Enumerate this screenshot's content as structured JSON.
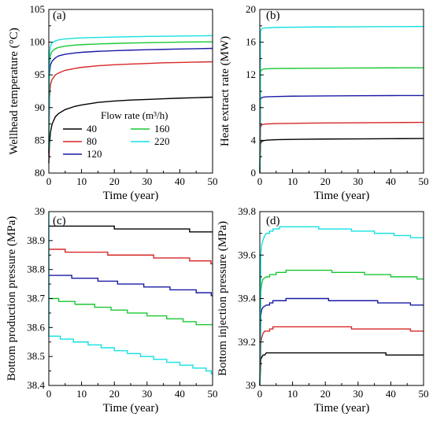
{
  "legend": {
    "title": "Flow rate (m³/h)",
    "items": [
      {
        "label": "40",
        "color": "#000000"
      },
      {
        "label": "80",
        "color": "#d62728"
      },
      {
        "label": "120",
        "color": "#1a1aa6"
      },
      {
        "label": "160",
        "color": "#19c832"
      },
      {
        "label": "220",
        "color": "#16e0e0"
      }
    ]
  },
  "chart_data": [
    {
      "id": "a",
      "panel_label": "(a)",
      "type": "line",
      "xlabel": "Time (year)",
      "ylabel": "Wellhead temperature (°C)",
      "xlim": [
        0,
        50
      ],
      "ylim": [
        80,
        105
      ],
      "xticks": [
        0,
        10,
        20,
        30,
        40,
        50
      ],
      "yticks": [
        80,
        85,
        90,
        95,
        100,
        105
      ],
      "series": [
        {
          "name": "40",
          "color": "#000000",
          "x": [
            0,
            0.2,
            0.5,
            1,
            2,
            3,
            5,
            8,
            10,
            15,
            20,
            25,
            30,
            35,
            40,
            45,
            50
          ],
          "y": [
            81.5,
            84.5,
            86.2,
            87.5,
            88.6,
            89.1,
            89.7,
            90.2,
            90.4,
            90.8,
            91.0,
            91.15,
            91.25,
            91.35,
            91.45,
            91.52,
            91.6
          ]
        },
        {
          "name": "80",
          "color": "#d62728",
          "x": [
            0,
            0.2,
            0.5,
            1,
            2,
            3,
            5,
            8,
            10,
            15,
            20,
            25,
            30,
            35,
            40,
            45,
            50
          ],
          "y": [
            82.5,
            91.5,
            93.5,
            94.3,
            95.0,
            95.3,
            95.7,
            96.0,
            96.15,
            96.4,
            96.55,
            96.65,
            96.75,
            96.85,
            96.9,
            96.95,
            97.0
          ]
        },
        {
          "name": "120",
          "color": "#1a1aa6",
          "x": [
            0,
            0.2,
            0.5,
            1,
            2,
            3,
            5,
            8,
            10,
            15,
            20,
            25,
            30,
            35,
            40,
            45,
            50
          ],
          "y": [
            83.0,
            95.0,
            96.5,
            97.1,
            97.6,
            97.9,
            98.15,
            98.35,
            98.45,
            98.6,
            98.7,
            98.78,
            98.85,
            98.9,
            98.95,
            99.0,
            99.05
          ]
        },
        {
          "name": "160",
          "color": "#19c832",
          "x": [
            0,
            0.2,
            0.5,
            1,
            2,
            3,
            5,
            8,
            10,
            15,
            20,
            25,
            30,
            35,
            40,
            45,
            50
          ],
          "y": [
            83.5,
            96.5,
            98.0,
            98.6,
            99.0,
            99.2,
            99.4,
            99.55,
            99.62,
            99.72,
            99.8,
            99.87,
            99.92,
            99.96,
            100.0,
            100.03,
            100.05
          ]
        },
        {
          "name": "220",
          "color": "#16e0e0",
          "x": [
            0,
            0.2,
            0.5,
            1,
            2,
            3,
            5,
            8,
            10,
            15,
            20,
            25,
            30,
            35,
            40,
            45,
            50
          ],
          "y": [
            84.0,
            98.0,
            99.4,
            99.9,
            100.2,
            100.35,
            100.5,
            100.6,
            100.65,
            100.72,
            100.78,
            100.83,
            100.87,
            100.9,
            100.93,
            100.96,
            101.0
          ]
        }
      ]
    },
    {
      "id": "b",
      "panel_label": "(b)",
      "type": "line",
      "xlabel": "Time (year)",
      "ylabel": "Heat extract rate (MW)",
      "xlim": [
        0,
        50
      ],
      "ylim": [
        0,
        20
      ],
      "xticks": [
        0,
        10,
        20,
        30,
        40,
        50
      ],
      "yticks": [
        0,
        4,
        8,
        12,
        16,
        20
      ],
      "series": [
        {
          "name": "40",
          "color": "#000000",
          "x": [
            0,
            0.2,
            0.5,
            1,
            2,
            5,
            10,
            20,
            30,
            40,
            50
          ],
          "y": [
            0,
            3.6,
            3.85,
            3.95,
            4.02,
            4.08,
            4.12,
            4.16,
            4.18,
            4.2,
            4.22
          ]
        },
        {
          "name": "80",
          "color": "#d62728",
          "x": [
            0,
            0.2,
            0.5,
            1,
            2,
            5,
            10,
            20,
            30,
            40,
            50
          ],
          "y": [
            0,
            5.6,
            5.85,
            5.95,
            6.0,
            6.05,
            6.08,
            6.12,
            6.15,
            6.17,
            6.2
          ]
        },
        {
          "name": "120",
          "color": "#1a1aa6",
          "x": [
            0,
            0.2,
            0.5,
            1,
            2,
            5,
            10,
            20,
            30,
            40,
            50
          ],
          "y": [
            0,
            9.0,
            9.2,
            9.27,
            9.32,
            9.36,
            9.4,
            9.43,
            9.45,
            9.47,
            9.48
          ]
        },
        {
          "name": "160",
          "color": "#19c832",
          "x": [
            0,
            0.2,
            0.5,
            1,
            2,
            5,
            10,
            20,
            30,
            40,
            50
          ],
          "y": [
            0,
            12.3,
            12.6,
            12.7,
            12.75,
            12.78,
            12.8,
            12.82,
            12.84,
            12.86,
            12.87
          ]
        },
        {
          "name": "220",
          "color": "#16e0e0",
          "x": [
            0,
            0.2,
            0.5,
            1,
            2,
            5,
            10,
            20,
            30,
            40,
            50
          ],
          "y": [
            0,
            17.3,
            17.6,
            17.7,
            17.75,
            17.8,
            17.83,
            17.86,
            17.88,
            17.9,
            17.92
          ]
        }
      ]
    },
    {
      "id": "c",
      "panel_label": "(c)",
      "type": "line",
      "xlabel": "Time (year)",
      "ylabel": "Bottom production pressure (MPa)",
      "xlim": [
        0,
        50
      ],
      "ylim": [
        38.4,
        39.0
      ],
      "xticks": [
        0,
        10,
        20,
        30,
        40,
        50
      ],
      "yticks": [
        38.4,
        38.5,
        38.6,
        38.7,
        38.8,
        38.9,
        39.0
      ],
      "series": [
        {
          "name": "40",
          "color": "#000000",
          "steps": [
            [
              0,
              38.95
            ],
            [
              20,
              38.94
            ],
            [
              43,
              38.93
            ]
          ],
          "x_end": 50,
          "start_spike": 38.95
        },
        {
          "name": "80",
          "color": "#d62728",
          "steps": [
            [
              0,
              38.87
            ],
            [
              5,
              38.86
            ],
            [
              18,
              38.85
            ],
            [
              32,
              38.84
            ],
            [
              43,
              38.83
            ],
            [
              49.5,
              38.82
            ]
          ],
          "x_end": 50,
          "start_spike": 38.87
        },
        {
          "name": "120",
          "color": "#1a1aa6",
          "steps": [
            [
              0,
              38.78
            ],
            [
              7,
              38.77
            ],
            [
              15,
              38.76
            ],
            [
              21,
              38.75
            ],
            [
              29,
              38.74
            ],
            [
              37,
              38.73
            ],
            [
              45,
              38.72
            ],
            [
              49.6,
              38.71
            ]
          ],
          "x_end": 50,
          "start_spike": 38.78
        },
        {
          "name": "160",
          "color": "#19c832",
          "steps": [
            [
              0,
              38.7
            ],
            [
              3,
              38.69
            ],
            [
              8,
              38.68
            ],
            [
              14,
              38.67
            ],
            [
              19,
              38.66
            ],
            [
              24,
              38.65
            ],
            [
              30,
              38.64
            ],
            [
              36,
              38.63
            ],
            [
              41,
              38.62
            ],
            [
              45,
              38.61
            ]
          ],
          "x_end": 50,
          "start_spike": 38.7
        },
        {
          "name": "220",
          "color": "#16e0e0",
          "steps": [
            [
              0,
              38.57
            ],
            [
              3.5,
              38.56
            ],
            [
              7.5,
              38.55
            ],
            [
              12,
              38.54
            ],
            [
              16,
              38.53
            ],
            [
              20,
              38.52
            ],
            [
              24,
              38.51
            ],
            [
              28,
              38.5
            ],
            [
              32,
              38.49
            ],
            [
              36,
              38.48
            ],
            [
              40,
              38.47
            ],
            [
              44,
              38.46
            ],
            [
              48,
              38.45
            ],
            [
              49.6,
              38.44
            ]
          ],
          "x_end": 50,
          "start_spike": 39.0
        }
      ]
    },
    {
      "id": "d",
      "panel_label": "(d)",
      "type": "line",
      "xlabel": "Time (year)",
      "ylabel": "Bottom injection pressure (MPa)",
      "xlim": [
        0,
        50
      ],
      "ylim": [
        39.0,
        39.8
      ],
      "xticks": [
        0,
        10,
        20,
        30,
        40,
        50
      ],
      "yticks": [
        39.0,
        39.2,
        39.4,
        39.6,
        39.8
      ],
      "series": [
        {
          "name": "40",
          "color": "#000000",
          "x": [
            0,
            0.3,
            0.6,
            1,
            1.5,
            2,
            38.5,
            38.5,
            50
          ],
          "y": [
            39.0,
            39.12,
            39.13,
            39.14,
            39.14,
            39.15,
            39.15,
            39.14,
            39.14
          ],
          "stepped": true
        },
        {
          "name": "80",
          "color": "#d62728",
          "x": [
            0,
            0.3,
            0.6,
            1,
            1.5,
            2,
            3,
            4,
            27,
            28,
            45,
            46,
            50
          ],
          "y": [
            39.0,
            39.2,
            39.22,
            39.24,
            39.25,
            39.25,
            39.26,
            39.27,
            39.27,
            39.26,
            39.26,
            39.25,
            39.25
          ],
          "stepped": true
        },
        {
          "name": "120",
          "color": "#1a1aa6",
          "x": [
            0,
            0.3,
            0.6,
            1,
            2,
            3,
            4,
            6,
            8,
            20,
            21,
            35,
            36,
            45,
            46,
            50
          ],
          "y": [
            39.0,
            39.32,
            39.35,
            39.36,
            39.37,
            39.38,
            39.39,
            39.39,
            39.4,
            39.4,
            39.39,
            39.39,
            39.38,
            39.38,
            39.37,
            39.37
          ],
          "stepped": true
        },
        {
          "name": "160",
          "color": "#19c832",
          "x": [
            0,
            0.3,
            0.6,
            1,
            2,
            3,
            5,
            8,
            10,
            20,
            22,
            30,
            32,
            38,
            40,
            46,
            48,
            50
          ],
          "y": [
            39.0,
            39.43,
            39.47,
            39.49,
            39.5,
            39.51,
            39.52,
            39.53,
            39.53,
            39.53,
            39.52,
            39.52,
            39.51,
            39.51,
            39.5,
            39.5,
            39.49,
            39.49
          ],
          "stepped": true
        },
        {
          "name": "220",
          "color": "#16e0e0",
          "x": [
            0,
            0.3,
            0.6,
            1,
            1.5,
            2,
            3,
            4,
            5,
            6,
            8,
            10,
            16,
            18,
            26,
            28,
            33,
            35,
            39,
            41,
            44,
            46,
            48,
            50
          ],
          "y": [
            39.0,
            39.6,
            39.65,
            39.67,
            39.69,
            39.7,
            39.71,
            39.72,
            39.72,
            39.73,
            39.73,
            39.73,
            39.73,
            39.72,
            39.72,
            39.71,
            39.71,
            39.7,
            39.7,
            39.69,
            39.69,
            39.68,
            39.68,
            39.68
          ],
          "stepped": true
        }
      ]
    }
  ]
}
